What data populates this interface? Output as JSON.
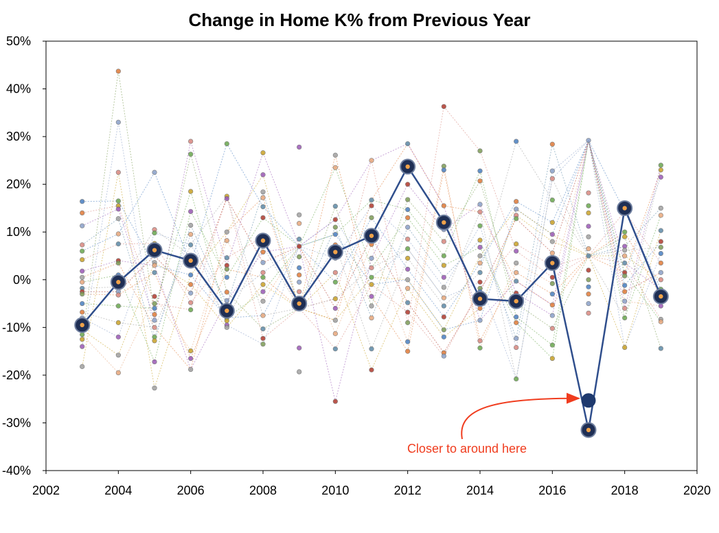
{
  "chart_data": {
    "type": "scatter",
    "title": "Change in Home K% from Previous Year",
    "xlabel": "",
    "ylabel": "",
    "xlim": [
      2002,
      2020
    ],
    "ylim": [
      -40,
      50
    ],
    "x_ticks": [
      "2002",
      "2004",
      "2006",
      "2008",
      "2010",
      "2012",
      "2014",
      "2016",
      "2018",
      "2020"
    ],
    "y_ticks": [
      "-40%",
      "-30%",
      "-20%",
      "-10%",
      "0%",
      "10%",
      "20%",
      "30%",
      "40%",
      "50%"
    ],
    "grid": false,
    "highlight_series": {
      "color": "#2f4e8c",
      "x": [
        2003,
        2004,
        2005,
        2006,
        2007,
        2008,
        2009,
        2010,
        2011,
        2012,
        2013,
        2014,
        2015,
        2016,
        2017,
        2018,
        2019
      ],
      "y": [
        -9.5,
        -0.5,
        6.2,
        4.0,
        -6.5,
        8.2,
        -5.0,
        5.8,
        9.2,
        23.7,
        12.0,
        -4.0,
        -4.5,
        3.5,
        -31.5,
        15.0,
        -3.5
      ]
    },
    "annotation": {
      "text": "Closer to around here",
      "x": 2017,
      "y": -25.3,
      "color": "#f03c1e"
    },
    "background_points": [
      {
        "x": 2003,
        "y": [
          16.4,
          14.0,
          11.3,
          7.3,
          6.0,
          4.2,
          1.8,
          0.5,
          -0.5,
          -1.8,
          -2.5,
          -3.0,
          -5.0,
          -6.8,
          -8.0,
          -10.5,
          -11.5,
          -12.5,
          -14.0,
          -18.2
        ]
      },
      {
        "x": 2004,
        "y": [
          43.7,
          33.0,
          22.5,
          16.5,
          15.5,
          14.8,
          12.8,
          9.6,
          7.5,
          4.0,
          3.5,
          1.0,
          -1.5,
          -2.5,
          -3.2,
          -5.5,
          -9.0,
          -12.0,
          -15.8,
          -19.5
        ]
      },
      {
        "x": 2005,
        "y": [
          22.5,
          10.5,
          9.8,
          7.6,
          5.0,
          3.6,
          3.0,
          1.5,
          -3.5,
          -5.0,
          -6.0,
          -7.3,
          -8.5,
          -10.0,
          -12.0,
          -12.8,
          -17.2,
          -22.7
        ]
      },
      {
        "x": 2006,
        "y": [
          29.0,
          26.3,
          18.5,
          14.3,
          11.4,
          9.5,
          7.3,
          5.0,
          3.3,
          1.0,
          -1.0,
          -2.8,
          -4.8,
          -6.3,
          -14.9,
          -16.5,
          -18.8
        ]
      },
      {
        "x": 2007,
        "y": [
          28.5,
          17.5,
          17.0,
          10.0,
          8.2,
          4.6,
          3.0,
          2.2,
          0.5,
          -2.6,
          -4.4,
          -5.3,
          -8.0,
          -8.6,
          -9.5,
          -10.0
        ]
      },
      {
        "x": 2008,
        "y": [
          26.6,
          22.0,
          18.4,
          17.2,
          15.3,
          13.0,
          9.0,
          7.0,
          5.8,
          3.6,
          1.5,
          0.5,
          -1.0,
          -2.5,
          -4.5,
          -7.5,
          -10.3,
          -12.3,
          -13.5
        ]
      },
      {
        "x": 2009,
        "y": [
          27.8,
          13.6,
          11.8,
          8.5,
          7.0,
          4.8,
          2.5,
          1.0,
          -0.5,
          -2.5,
          -4.0,
          -6.0,
          -14.3,
          -19.3
        ]
      },
      {
        "x": 2010,
        "y": [
          26.1,
          23.5,
          15.4,
          12.6,
          11.0,
          9.5,
          7.3,
          4.5,
          1.5,
          -0.5,
          -4.0,
          -6.0,
          -8.5,
          -11.3,
          -14.5,
          -25.5
        ]
      },
      {
        "x": 2011,
        "y": [
          25.0,
          16.7,
          15.5,
          13.0,
          9.0,
          7.4,
          4.5,
          2.5,
          0.5,
          -1.0,
          -3.5,
          -5.5,
          -8.0,
          -14.5,
          -18.9
        ]
      },
      {
        "x": 2012,
        "y": [
          28.5,
          20.0,
          16.8,
          14.7,
          13.0,
          11.0,
          8.5,
          6.5,
          4.5,
          2.2,
          0.0,
          -1.8,
          -4.8,
          -6.8,
          -9.0,
          -13.0,
          -15.0
        ]
      },
      {
        "x": 2013,
        "y": [
          36.3,
          23.8,
          23.0,
          15.5,
          10.5,
          8.0,
          5.0,
          3.0,
          0.5,
          -1.6,
          -3.8,
          -5.5,
          -7.8,
          -10.5,
          -12.0,
          -15.3,
          -16.0
        ]
      },
      {
        "x": 2014,
        "y": [
          27.0,
          22.8,
          20.7,
          15.8,
          14.2,
          11.3,
          8.3,
          6.8,
          5.0,
          3.5,
          1.5,
          -0.5,
          -1.8,
          -2.5,
          -6.0,
          -8.5,
          -12.8,
          -14.3
        ]
      },
      {
        "x": 2015,
        "y": [
          29.0,
          16.4,
          14.8,
          13.5,
          12.8,
          7.5,
          6.0,
          3.5,
          1.5,
          -0.3,
          -2.8,
          -5.0,
          -7.8,
          -9.0,
          -12.3,
          -14.2,
          -20.8
        ]
      },
      {
        "x": 2016,
        "y": [
          28.4,
          22.8,
          21.2,
          16.7,
          12.0,
          9.5,
          8.0,
          5.6,
          2.8,
          0.5,
          -0.8,
          -3.0,
          -5.3,
          -7.5,
          -10.2,
          -13.7,
          -16.5
        ]
      },
      {
        "x": 2017,
        "y": [
          29.2,
          18.2,
          15.5,
          14.0,
          11.2,
          9.0,
          6.5,
          5.0,
          2.0,
          0.0,
          -1.5,
          -3.0,
          -5.0,
          -7.0
        ]
      },
      {
        "x": 2018,
        "y": [
          14.3,
          10.0,
          9.0,
          7.0,
          6.2,
          5.0,
          3.5,
          1.5,
          0.8,
          -1.2,
          -2.5,
          -4.5,
          -6.0,
          -8.0,
          -14.2
        ]
      },
      {
        "x": 2019,
        "y": [
          24.0,
          23.0,
          21.5,
          15.0,
          13.5,
          10.3,
          8.0,
          6.8,
          5.5,
          3.5,
          1.5,
          0.0,
          -2.0,
          -3.5,
          -5.5,
          -8.3,
          -8.8,
          -14.4
        ]
      }
    ]
  }
}
